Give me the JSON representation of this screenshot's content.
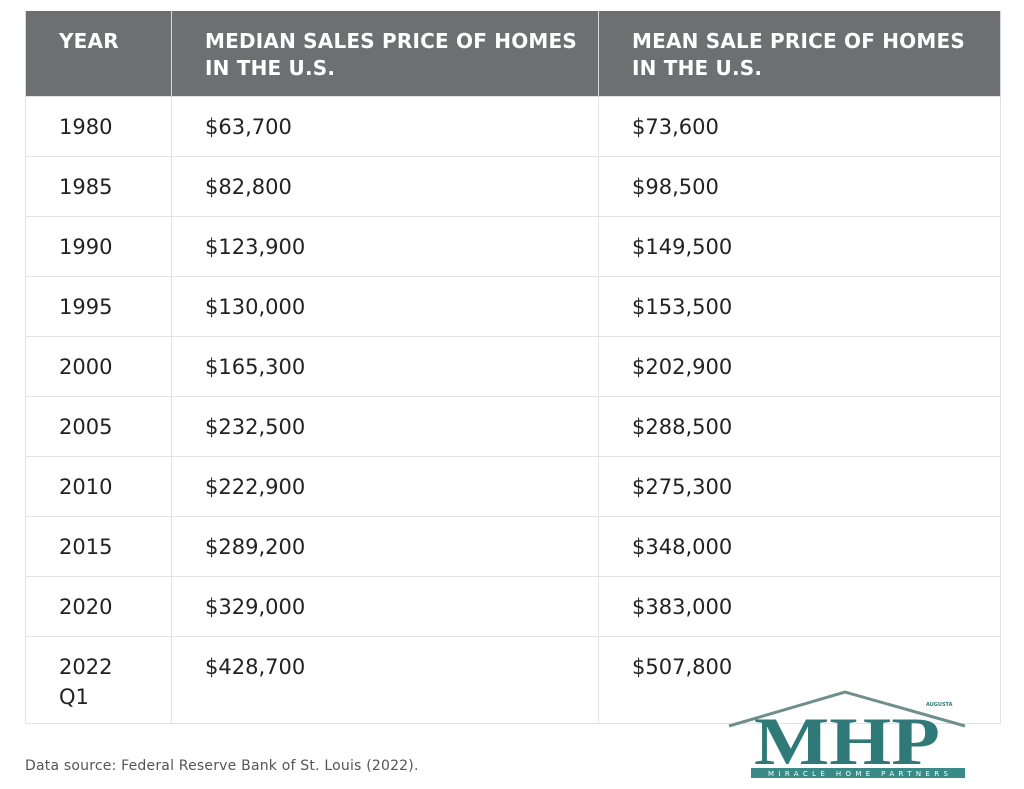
{
  "chart_data": {
    "type": "table",
    "columns": [
      "YEAR",
      "MEDIAN SALES PRICE OF HOMES IN THE U.S.",
      "MEAN SALE PRICE OF HOMES IN THE U.S."
    ],
    "rows": [
      {
        "year": "1980",
        "median": "$63,700",
        "mean": "$73,600"
      },
      {
        "year": "1985",
        "median": "$82,800",
        "mean": "$98,500"
      },
      {
        "year": "1990",
        "median": "$123,900",
        "mean": "$149,500"
      },
      {
        "year": "1995",
        "median": "$130,000",
        "mean": "$153,500"
      },
      {
        "year": "2000",
        "median": "$165,300",
        "mean": "$202,900"
      },
      {
        "year": "2005",
        "median": "$232,500",
        "mean": "$288,500"
      },
      {
        "year": "2010",
        "median": "$222,900",
        "mean": "$275,300"
      },
      {
        "year": "2015",
        "median": "$289,200",
        "mean": "$348,000"
      },
      {
        "year": "2020",
        "median": "$329,000",
        "mean": "$383,000"
      },
      {
        "year": "2022 Q1",
        "median": "$428,700",
        "mean": "$507,800"
      }
    ],
    "source": "Data source: Federal Reserve Bank of St. Louis (2022)."
  },
  "logo": {
    "letters": "MHP",
    "tagline": "MIRACLE HOME PARTNERS",
    "small_text": "AUGUSTA",
    "colors": {
      "teal": "#2f7a78",
      "band": "#3a8a87",
      "roof": "#6f8f8d"
    }
  },
  "colors": {
    "header_bg": "#6d6f70",
    "header_text": "#ffffff",
    "grid": "#e3e3e3"
  }
}
